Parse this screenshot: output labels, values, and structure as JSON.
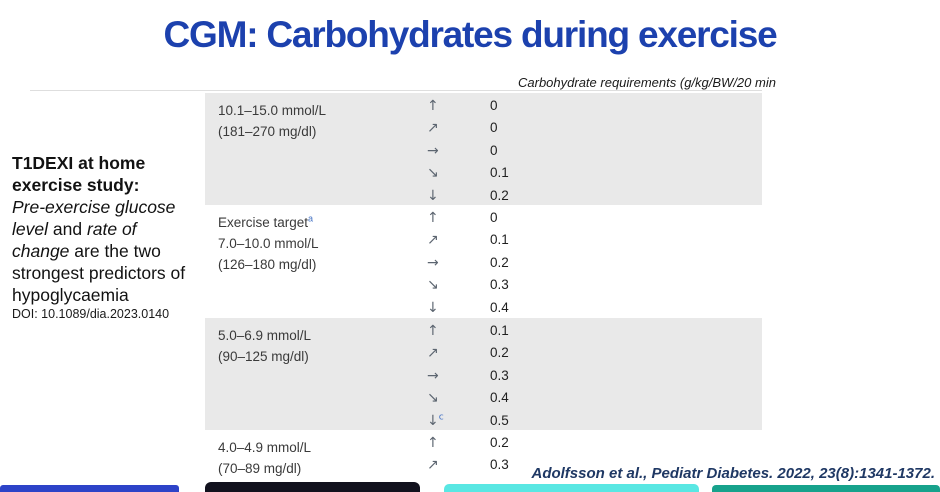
{
  "slide": {
    "title": "CGM: Carbohydrates during exercise",
    "citation": "Adolfsson et al., Pediatr Diabetes. 2022, 23(8):1341-1372."
  },
  "sidebar": {
    "heading": "T1DEXI at home exercise study:",
    "body_italic1": "Pre-exercise glucose level",
    "body_plain1": " and ",
    "body_italic2": "rate of change",
    "body_plain2": " are the two strongest predictors of hypoglycaemia",
    "doi": "DOI: 10.1089/dia.2023.0140"
  },
  "table": {
    "header": "Carbohydrate requirements (g/kg/BW/20 min",
    "groups": [
      {
        "range_mmol": "10.1–15.0 mmol/L",
        "range_mgdl": "(181–270 mg/dl)",
        "rows": [
          {
            "arrow": "↑",
            "value": "0"
          },
          {
            "arrow": "↗",
            "value": "0"
          },
          {
            "arrow": "→",
            "value": "0"
          },
          {
            "arrow": "↘",
            "value": "0.1"
          },
          {
            "arrow": "↓",
            "value": "0.2"
          }
        ]
      },
      {
        "name": "Exercise target",
        "name_sup": "a",
        "range_mmol": "7.0–10.0 mmol/L",
        "range_mgdl": "(126–180 mg/dl)",
        "rows": [
          {
            "arrow": "↑",
            "value": "0"
          },
          {
            "arrow": "↗",
            "value": "0.1"
          },
          {
            "arrow": "→",
            "value": "0.2"
          },
          {
            "arrow": "↘",
            "value": "0.3"
          },
          {
            "arrow": "↓",
            "value": "0.4"
          }
        ]
      },
      {
        "range_mmol": "5.0–6.9 mmol/L",
        "range_mgdl": "(90–125 mg/dl)",
        "rows": [
          {
            "arrow": "↑",
            "value": "0.1"
          },
          {
            "arrow": "↗",
            "value": "0.2"
          },
          {
            "arrow": "→",
            "value": "0.3"
          },
          {
            "arrow": "↘",
            "value": "0.4"
          },
          {
            "arrow": "↓",
            "arrow_sup": "c",
            "value": "0.5"
          }
        ]
      },
      {
        "range_mmol": "4.0–4.9 mmol/L",
        "range_mgdl": "(70–89 mg/dl)",
        "rows": [
          {
            "arrow": "↑",
            "value": "0.2"
          },
          {
            "arrow": "↗",
            "value": "0.3"
          }
        ]
      }
    ]
  },
  "colors": {
    "title_blue": "#1c41ae",
    "band_gray": "#e9e9e9",
    "superscript_blue": "#4472c4",
    "citation_navy": "#1f3864",
    "footer_blue": "#2d43c8",
    "footer_black": "#12121e",
    "footer_cyan": "#59e7e3",
    "footer_teal": "#17a28c"
  }
}
